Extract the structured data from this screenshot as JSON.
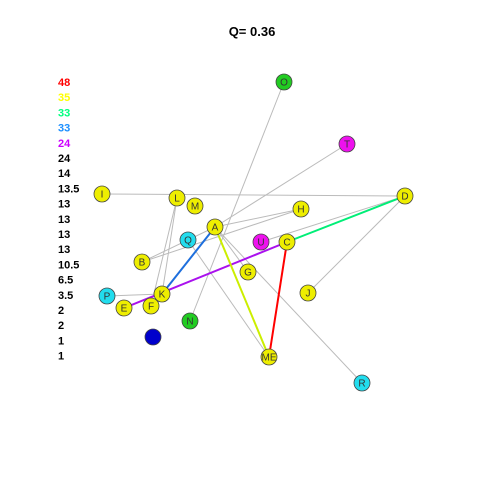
{
  "title": "Q= 0.36",
  "legend": [
    {
      "value": "48",
      "color": "#ff0000"
    },
    {
      "value": "35",
      "color": "#ffff00"
    },
    {
      "value": "33",
      "color": "#00ff7f"
    },
    {
      "value": "33",
      "color": "#1e90ff"
    },
    {
      "value": "24",
      "color": "#cc00ff"
    },
    {
      "value": "24",
      "color": "#000000"
    },
    {
      "value": "14",
      "color": "#000000"
    },
    {
      "value": "13.5",
      "color": "#000000"
    },
    {
      "value": "13",
      "color": "#000000"
    },
    {
      "value": "13",
      "color": "#000000"
    },
    {
      "value": "13",
      "color": "#000000"
    },
    {
      "value": "13",
      "color": "#000000"
    },
    {
      "value": "10.5",
      "color": "#000000"
    },
    {
      "value": "6.5",
      "color": "#000000"
    },
    {
      "value": "3.5",
      "color": "#000000"
    },
    {
      "value": "2",
      "color": "#000000"
    },
    {
      "value": "2",
      "color": "#000000"
    },
    {
      "value": "1",
      "color": "#000000"
    },
    {
      "value": "1",
      "color": "#000000"
    }
  ],
  "nodes": [
    {
      "id": "O",
      "label": "O",
      "color": "#22cc22"
    },
    {
      "id": "T",
      "label": "T",
      "color": "#ee11ee"
    },
    {
      "id": "I",
      "label": "I",
      "color": "#eeee00"
    },
    {
      "id": "L",
      "label": "L",
      "color": "#eeee00"
    },
    {
      "id": "M",
      "label": "M",
      "color": "#eeee00"
    },
    {
      "id": "D",
      "label": "D",
      "color": "#eeee00"
    },
    {
      "id": "H",
      "label": "H",
      "color": "#eeee00"
    },
    {
      "id": "A",
      "label": "A",
      "color": "#eeee00"
    },
    {
      "id": "Q",
      "label": "Q",
      "color": "#22ddee"
    },
    {
      "id": "U",
      "label": "U",
      "color": "#ee11ee"
    },
    {
      "id": "C",
      "label": "C",
      "color": "#eeee00"
    },
    {
      "id": "B",
      "label": "B",
      "color": "#eeee00"
    },
    {
      "id": "G",
      "label": "G",
      "color": "#eeee00"
    },
    {
      "id": "J",
      "label": "J",
      "color": "#eeee00"
    },
    {
      "id": "P",
      "label": "P",
      "color": "#22ddee"
    },
    {
      "id": "K",
      "label": "K",
      "color": "#eeee00"
    },
    {
      "id": "E",
      "label": "E",
      "color": "#eeee00"
    },
    {
      "id": "F",
      "label": "F",
      "color": "#eeee00"
    },
    {
      "id": "N",
      "label": "N",
      "color": "#22cc22"
    },
    {
      "id": "S",
      "label": "",
      "color": "#0000cc"
    },
    {
      "id": "ME",
      "label": "ME",
      "color": "#eeee00"
    },
    {
      "id": "R",
      "label": "R",
      "color": "#22ddee"
    }
  ],
  "edges": [
    {
      "from": "C",
      "to": "ME",
      "color": "#ff0000",
      "weight": 48
    },
    {
      "from": "A",
      "to": "ME",
      "color": "#ccee00",
      "weight": 35
    },
    {
      "from": "C",
      "to": "D",
      "color": "#00ee77",
      "weight": 33
    },
    {
      "from": "K",
      "to": "A",
      "color": "#1e6fdd",
      "weight": 33
    },
    {
      "from": "E",
      "to": "C",
      "color": "#aa11ee",
      "weight": 24
    },
    {
      "from": "I",
      "to": "D",
      "color": "#bbbbbb",
      "weight": 1
    },
    {
      "from": "O",
      "to": "N",
      "color": "#bbbbbb",
      "weight": 1
    },
    {
      "from": "T",
      "to": "A",
      "color": "#bbbbbb",
      "weight": 1
    },
    {
      "from": "H",
      "to": "B",
      "color": "#bbbbbb",
      "weight": 1
    },
    {
      "from": "A",
      "to": "R",
      "color": "#bbbbbb",
      "weight": 1
    },
    {
      "from": "L",
      "to": "K",
      "color": "#bbbbbb",
      "weight": 1
    },
    {
      "from": "L",
      "to": "F",
      "color": "#bbbbbb",
      "weight": 1
    },
    {
      "from": "Q",
      "to": "ME",
      "color": "#bbbbbb",
      "weight": 1
    },
    {
      "from": "B",
      "to": "A",
      "color": "#bbbbbb",
      "weight": 1
    },
    {
      "from": "D",
      "to": "U",
      "color": "#bbbbbb",
      "weight": 1
    },
    {
      "from": "D",
      "to": "J",
      "color": "#bbbbbb",
      "weight": 1
    },
    {
      "from": "H",
      "to": "A",
      "color": "#bbbbbb",
      "weight": 1
    },
    {
      "from": "A",
      "to": "G",
      "color": "#bbbbbb",
      "weight": 1
    },
    {
      "from": "P",
      "to": "K",
      "color": "#bbbbbb",
      "weight": 1
    }
  ]
}
